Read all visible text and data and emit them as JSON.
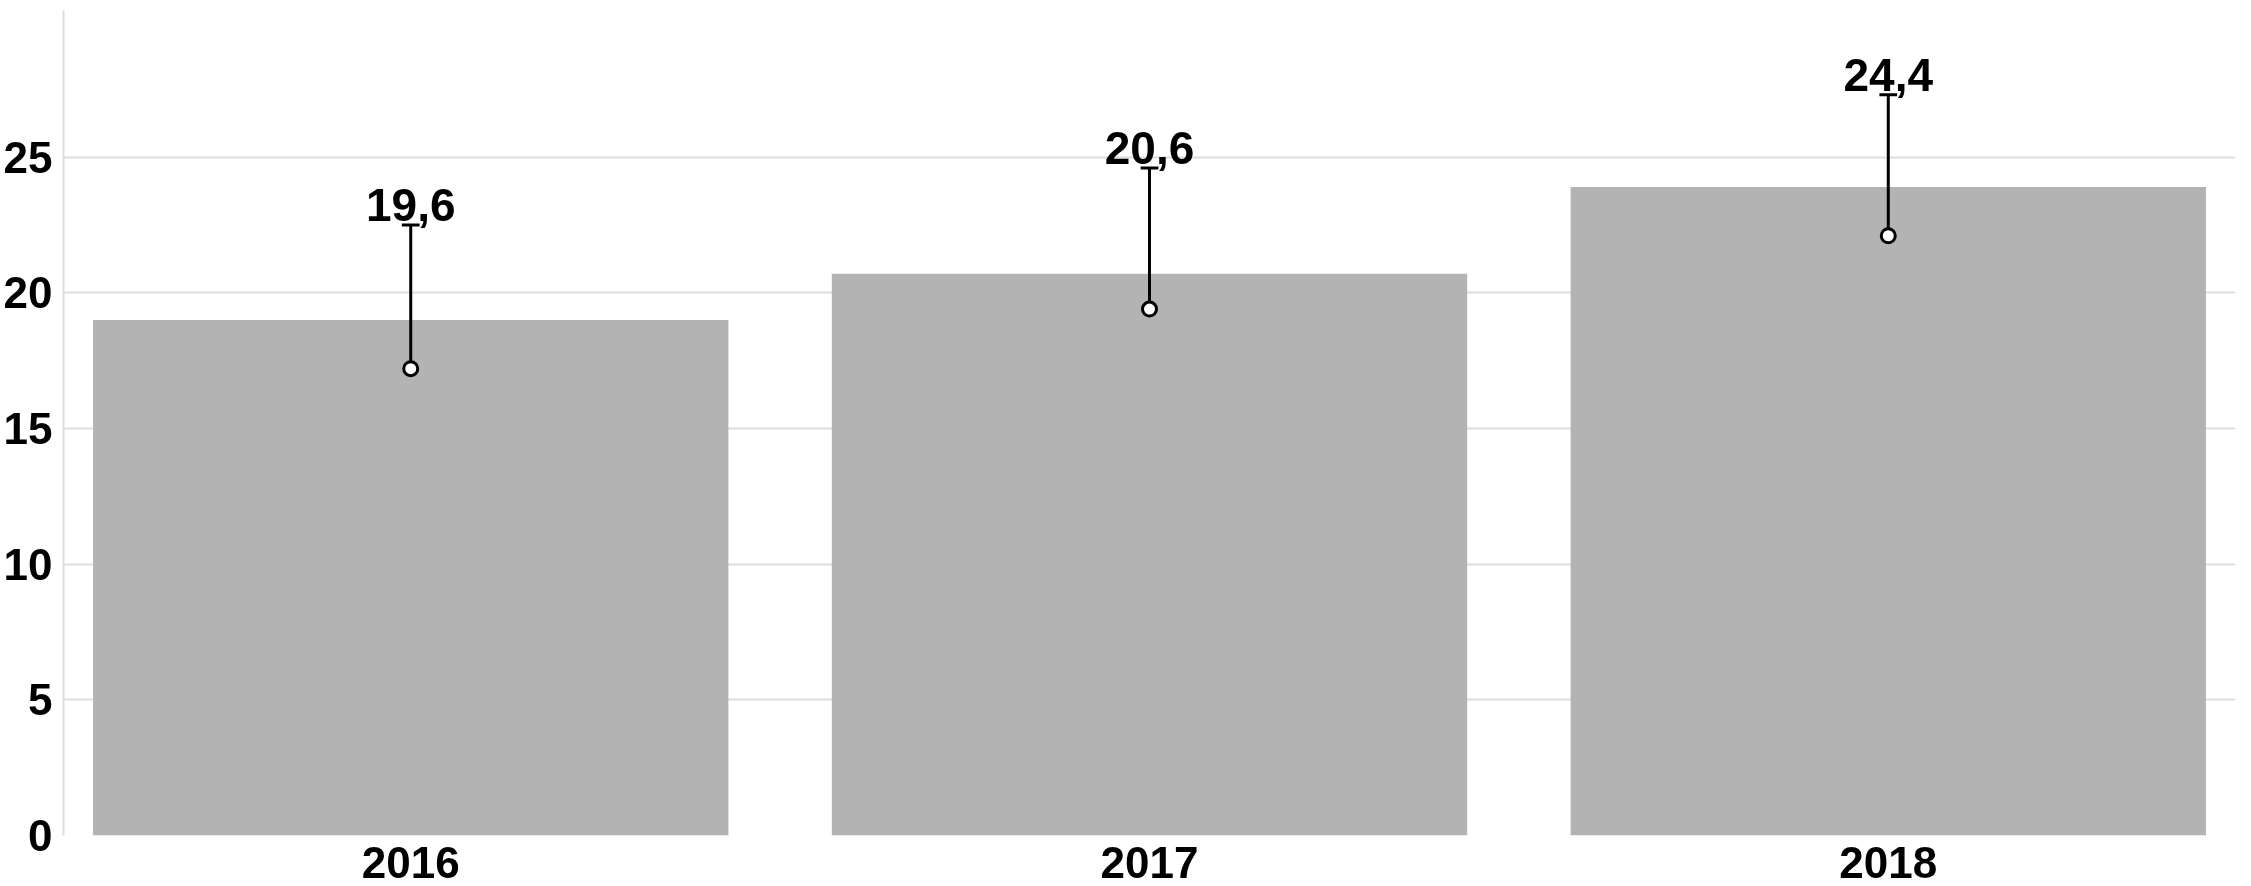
{
  "chart_data": {
    "type": "bar",
    "categories": [
      "2016",
      "2017",
      "2018"
    ],
    "series": [
      {
        "color": "#b3b3b3",
        "values": [
          19.0,
          20.7,
          23.9
        ]
      },
      {
        "type": "scatter",
        "color": "#000000",
        "values": [
          17.2,
          19.4,
          22.1
        ],
        "errors": [
          [
            17.2,
            22.5
          ],
          [
            19.4,
            24.6
          ],
          [
            22.1,
            27.3
          ]
        ]
      }
    ],
    "annotations": [
      "19,6",
      "20,6",
      "24,4"
    ],
    "ylim": [
      0,
      30.4
    ],
    "yticks": [
      0,
      5,
      10,
      15,
      20,
      25
    ],
    "grid": "y",
    "marker": "circle"
  }
}
